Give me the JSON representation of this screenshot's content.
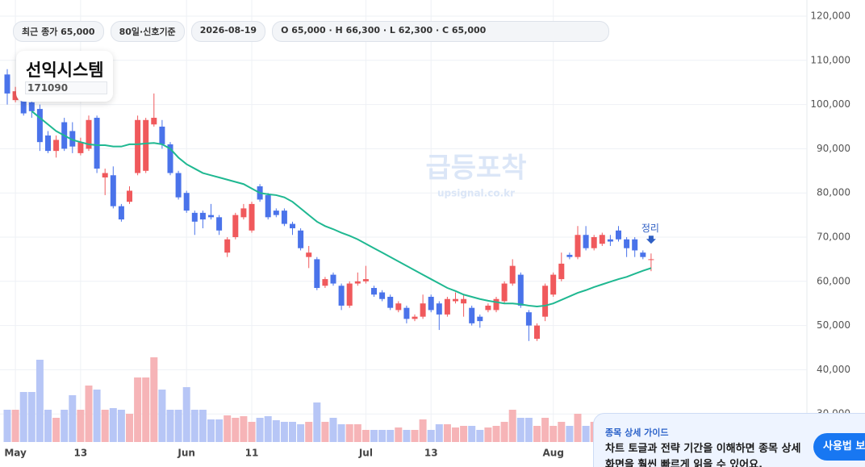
{
  "header": {
    "pills": [
      "최근 종가 65,000",
      "80일·신호기준",
      "2026-08-19",
      "O 65,000 · H 66,300 · L 62,300 · C 65,000"
    ]
  },
  "stock": {
    "name": "선익시스템",
    "code": "171090"
  },
  "watermark": {
    "title": "급등포착",
    "url": "upsignal.co.kr"
  },
  "guide": {
    "title": "종목 상세 가이드",
    "body_lines": [
      "차트 토글과 전략 기간을 이해하면 종목 상세",
      "화면을 훨씬 빠르게 읽을 수 있어요."
    ],
    "button": "사용법 보기"
  },
  "chart_data": {
    "type": "candlestick",
    "categories": [
      null,
      "May",
      null,
      null,
      null,
      null,
      null,
      null,
      null,
      "13",
      null,
      null,
      null,
      null,
      null,
      null,
      null,
      null,
      null,
      null,
      null,
      null,
      "Jun",
      null,
      null,
      null,
      null,
      null,
      null,
      null,
      "11",
      null,
      null,
      null,
      null,
      null,
      null,
      null,
      null,
      null,
      null,
      null,
      null,
      null,
      "Jul",
      null,
      null,
      null,
      null,
      null,
      null,
      null,
      "13",
      null,
      null,
      null,
      null,
      null,
      null,
      null,
      null,
      null,
      null,
      null,
      null,
      null,
      null,
      "Aug",
      null,
      null,
      null,
      null,
      null,
      null,
      null,
      null,
      null,
      null,
      null,
      null
    ],
    "open": [
      106800,
      101000,
      101000,
      100500,
      99000,
      93000,
      89500,
      96000,
      94000,
      89000,
      90000,
      97000,
      83500,
      84000,
      77000,
      78000,
      84500,
      85000,
      95500,
      95000,
      91000,
      84500,
      80000,
      75500,
      75500,
      75000,
      74500,
      66500,
      70000,
      74500,
      71500,
      81500,
      79500,
      76000,
      76000,
      73000,
      71500,
      65500,
      65000,
      59000,
      61500,
      59000,
      54500,
      59500,
      60000,
      58500,
      57500,
      56500,
      53500,
      54000,
      51500,
      52000,
      56500,
      55000,
      52500,
      55500,
      55000,
      54000,
      52000,
      53500,
      53500,
      55500,
      59500,
      61500,
      53000,
      47000,
      52000,
      57000,
      60500,
      66000,
      65500,
      70500,
      67500,
      68500,
      69500,
      71500,
      69500,
      69500,
      66500,
      65000
    ],
    "high": [
      108000,
      104000,
      102000,
      101500,
      100000,
      94000,
      93000,
      97000,
      96000,
      92500,
      97500,
      97500,
      85500,
      86000,
      77500,
      81500,
      97500,
      97000,
      102500,
      96500,
      91500,
      85000,
      80500,
      76000,
      76000,
      77500,
      75000,
      70000,
      75500,
      77500,
      78000,
      82000,
      80000,
      76500,
      76500,
      73500,
      72000,
      68000,
      65500,
      61000,
      62000,
      59500,
      60000,
      62000,
      63500,
      59000,
      58000,
      57000,
      55500,
      54500,
      52500,
      57000,
      57000,
      55500,
      56500,
      57500,
      57000,
      54500,
      52500,
      55000,
      56500,
      60000,
      65000,
      62000,
      53500,
      50500,
      59500,
      62000,
      66500,
      66500,
      72500,
      72500,
      70500,
      71000,
      70500,
      72500,
      70000,
      70000,
      67000,
      66300
    ],
    "low": [
      100000,
      100500,
      97500,
      97000,
      89500,
      89000,
      88000,
      89500,
      89000,
      88500,
      89500,
      84500,
      79500,
      76500,
      73500,
      77500,
      84000,
      84500,
      95000,
      90000,
      84000,
      78500,
      75500,
      70500,
      72000,
      74000,
      70500,
      65500,
      69500,
      74000,
      71000,
      78000,
      74000,
      74500,
      72500,
      70500,
      67000,
      63000,
      58000,
      58500,
      59000,
      53500,
      54000,
      59000,
      59500,
      56500,
      55500,
      53500,
      53000,
      50500,
      51000,
      51500,
      53000,
      49000,
      52000,
      55000,
      52000,
      50000,
      49500,
      53000,
      53000,
      55000,
      59000,
      54000,
      46500,
      46500,
      51000,
      56500,
      60000,
      65000,
      65000,
      67000,
      67000,
      68000,
      68000,
      69000,
      65500,
      65500,
      65000,
      62300
    ],
    "close": [
      102500,
      103000,
      98000,
      98500,
      91500,
      89500,
      92000,
      90000,
      90500,
      91500,
      96500,
      85500,
      84500,
      77000,
      74000,
      80500,
      96500,
      96500,
      97000,
      91000,
      84500,
      79000,
      76000,
      73500,
      74000,
      74500,
      71500,
      69500,
      75000,
      76500,
      77500,
      78500,
      74500,
      75000,
      73000,
      72000,
      67500,
      66500,
      58500,
      60500,
      59500,
      54500,
      59500,
      60000,
      60500,
      57000,
      56000,
      54000,
      55000,
      51500,
      52000,
      55000,
      53500,
      52500,
      56000,
      56000,
      56000,
      50500,
      51000,
      54500,
      56000,
      59500,
      63500,
      54500,
      50000,
      50000,
      59000,
      61500,
      64000,
      65500,
      70500,
      67500,
      70000,
      70500,
      69000,
      69500,
      67500,
      67000,
      65500,
      65000
    ],
    "volume": [
      40,
      40,
      62,
      62,
      102,
      40,
      30,
      40,
      58,
      40,
      70,
      65,
      40,
      42,
      40,
      35,
      80,
      80,
      105,
      65,
      40,
      40,
      68,
      40,
      40,
      28,
      28,
      33,
      30,
      32,
      25,
      30,
      32,
      27,
      25,
      25,
      22,
      25,
      49,
      25,
      30,
      22,
      22,
      22,
      15,
      15,
      15,
      15,
      18,
      15,
      15,
      28,
      15,
      22,
      22,
      18,
      20,
      20,
      15,
      18,
      20,
      25,
      40,
      30,
      30,
      20,
      30,
      20,
      25,
      20,
      35,
      20,
      25,
      25,
      25,
      25,
      25,
      25,
      25,
      25
    ],
    "ma": {
      "color": "#1fb891",
      "values": [
        null,
        null,
        null,
        98500,
        97000,
        95500,
        94000,
        93000,
        92000,
        91500,
        91000,
        90800,
        90800,
        90500,
        90500,
        91000,
        91000,
        91200,
        91300,
        91000,
        90000,
        88000,
        86500,
        85500,
        84500,
        84000,
        83500,
        83000,
        82500,
        82000,
        81000,
        80000,
        79700,
        79500,
        79000,
        78000,
        76500,
        75000,
        73500,
        72500,
        71800,
        71000,
        70300,
        69500,
        68500,
        67500,
        66500,
        65500,
        64500,
        63500,
        62500,
        61500,
        60500,
        59500,
        58500,
        57800,
        57000,
        56500,
        56000,
        55600,
        55300,
        55000,
        55000,
        54800,
        54500,
        54300,
        54500,
        55000,
        55800,
        56600,
        57400,
        58000,
        58700,
        59300,
        59900,
        60500,
        61000,
        61700,
        62400,
        63000
      ]
    },
    "up_color": "#f0595c",
    "down_color": "#4a73ea",
    "volume_up_color": "#f6b4b7",
    "volume_down_color": "#b7c6f6",
    "annotation": "정리",
    "ylim": [
      23650,
      123650
    ],
    "yticks": [
      {
        "value": 30000,
        "label": "30,000"
      },
      {
        "value": 40000,
        "label": "40,000"
      },
      {
        "value": 50000,
        "label": "50,000"
      },
      {
        "value": 60000,
        "label": "60,000"
      },
      {
        "value": 70000,
        "label": "70,000"
      },
      {
        "value": 80000,
        "label": "80,000"
      },
      {
        "value": 90000,
        "label": "90,000"
      },
      {
        "value": 100000,
        "label": "100,000"
      },
      {
        "value": 110000,
        "label": "110,000"
      },
      {
        "value": 120000,
        "label": "120,000"
      }
    ],
    "grid": true
  }
}
